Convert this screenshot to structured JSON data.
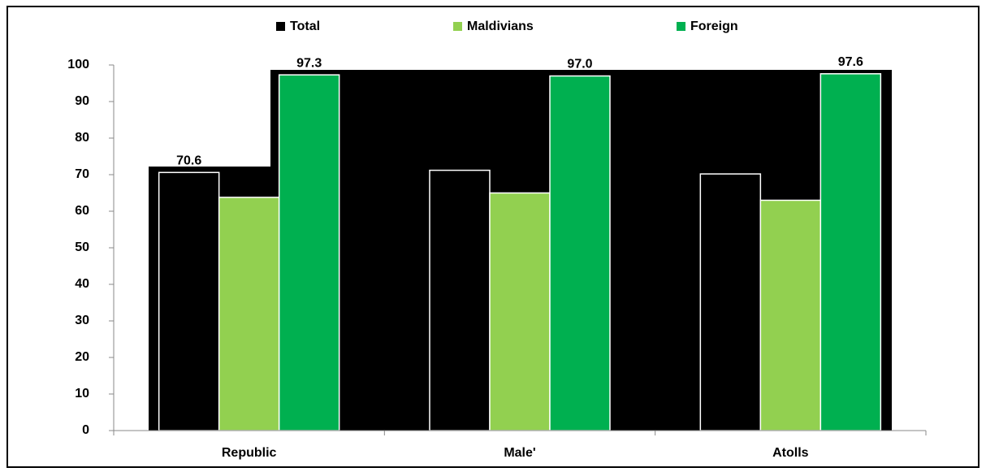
{
  "chart_data": {
    "type": "bar",
    "categories": [
      "Republic",
      "Male'",
      "Atolls"
    ],
    "series": [
      {
        "name": "Total",
        "color": "#000000",
        "values": [
          70.6,
          71.2,
          70.2
        ],
        "value_labels": [
          "70.6",
          null,
          null
        ]
      },
      {
        "name": "Maldivians",
        "color": "#92d050",
        "values": [
          63.8,
          65.0,
          63.0
        ]
      },
      {
        "name": "Foreign",
        "color": "#00b050",
        "values": [
          97.3,
          97.0,
          97.6
        ],
        "value_labels": [
          "97.3",
          "97.0",
          "97.6"
        ]
      }
    ],
    "ylim": [
      0,
      100
    ],
    "yticks": [
      0,
      10,
      20,
      30,
      40,
      50,
      60,
      70,
      80,
      90,
      100
    ],
    "legend": "top"
  }
}
